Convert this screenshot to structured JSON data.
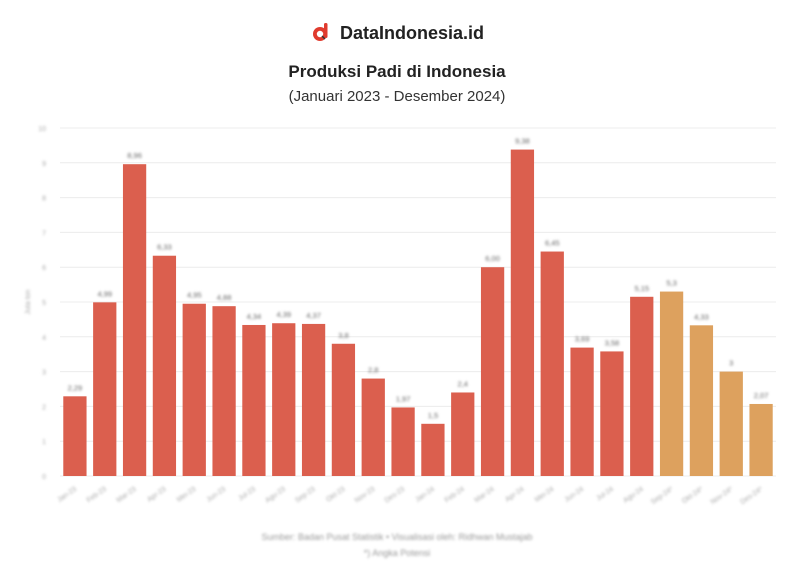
{
  "brand": {
    "name": "DataIndonesia.id",
    "accent": "#e03b2e"
  },
  "header": {
    "title": "Produksi Padi di Indonesia",
    "subtitle": "(Januari 2023 - Desember 2024)"
  },
  "footer": {
    "source": "Sumber: Badan Pusat Statistik • Visualisasi oleh: Ridhwan Mustajab",
    "note": "*) Angka Potensi"
  },
  "chart_data": {
    "type": "bar",
    "ylabel": "Juta ton",
    "ylim": [
      0,
      10
    ],
    "yticks": [
      0,
      1,
      2,
      3,
      4,
      5,
      6,
      7,
      8,
      9,
      10
    ],
    "grid": true,
    "categories": [
      "Jan-23",
      "Feb-23",
      "Mar-23",
      "Apr-23",
      "Mei-23",
      "Jun-23",
      "Jul-23",
      "Agu-23",
      "Sep-23",
      "Okt-23",
      "Nov-23",
      "Des-23",
      "Jan-24",
      "Feb-24",
      "Mar-24",
      "Apr-24",
      "Mei-24",
      "Jun-24",
      "Jul-24",
      "Agu-24",
      "Sep-24*",
      "Okt-24*",
      "Nov-24*",
      "Des-24*"
    ],
    "values": [
      2.29,
      4.99,
      8.96,
      6.33,
      4.95,
      4.88,
      4.34,
      4.39,
      4.37,
      3.8,
      2.8,
      1.97,
      1.5,
      2.4,
      6.0,
      9.38,
      6.45,
      3.69,
      3.58,
      5.15,
      5.3,
      4.33,
      3.0,
      2.07
    ],
    "labels": [
      "2,29",
      "4,99",
      "8,96",
      "6,33",
      "4,95",
      "4,88",
      "4,34",
      "4,39",
      "4,37",
      "3,8",
      "2,8",
      "1,97",
      "1,5",
      "2,4",
      "6,00",
      "9,38",
      "6,45",
      "3,69",
      "3,58",
      "5,15",
      "5,3",
      "4,33",
      "3",
      "2,07"
    ],
    "colors": [
      "#db5f4e",
      "#db5f4e",
      "#db5f4e",
      "#db5f4e",
      "#db5f4e",
      "#db5f4e",
      "#db5f4e",
      "#db5f4e",
      "#db5f4e",
      "#db5f4e",
      "#db5f4e",
      "#db5f4e",
      "#db5f4e",
      "#db5f4e",
      "#db5f4e",
      "#db5f4e",
      "#db5f4e",
      "#db5f4e",
      "#db5f4e",
      "#db5f4e",
      "#dda15e",
      "#dda15e",
      "#dda15e",
      "#dda15e"
    ]
  }
}
